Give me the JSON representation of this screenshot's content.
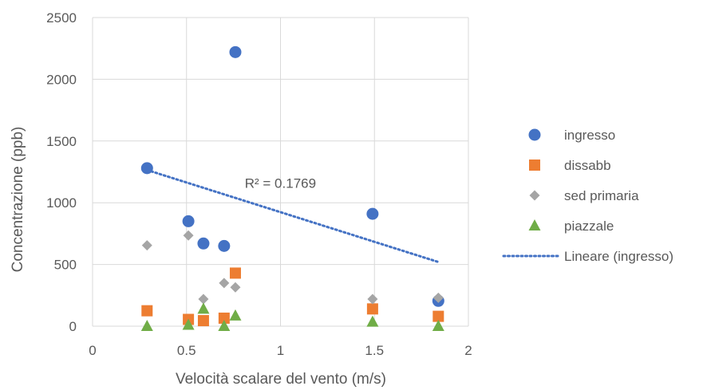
{
  "chart_data": {
    "type": "scatter",
    "title": "",
    "xlabel": "Velocità scalare del vento (m/s)",
    "ylabel": "Concentrazione (ppb)",
    "xlim": [
      0,
      2
    ],
    "ylim": [
      0,
      2500
    ],
    "xticks": [
      0,
      0.5,
      1,
      1.5,
      2
    ],
    "xtick_labels": [
      "0",
      "0.5",
      "1",
      "1.5",
      "2"
    ],
    "yticks": [
      0,
      500,
      1000,
      1500,
      2000,
      2500
    ],
    "ytick_labels": [
      "0",
      "500",
      "1000",
      "1500",
      "2000",
      "2500"
    ],
    "grid": true,
    "legend_position": "right",
    "series": [
      {
        "name": "ingresso",
        "marker": "circle",
        "color": "#4472C4",
        "points": [
          [
            0.29,
            1280
          ],
          [
            0.51,
            850
          ],
          [
            0.59,
            670
          ],
          [
            0.7,
            650
          ],
          [
            0.76,
            2220
          ],
          [
            1.49,
            910
          ],
          [
            1.84,
            205
          ]
        ]
      },
      {
        "name": "dissabb",
        "marker": "square",
        "color": "#ED7D31",
        "points": [
          [
            0.29,
            125
          ],
          [
            0.51,
            55
          ],
          [
            0.59,
            45
          ],
          [
            0.7,
            65
          ],
          [
            0.76,
            430
          ],
          [
            1.49,
            140
          ],
          [
            1.84,
            80
          ]
        ]
      },
      {
        "name": "sed primaria",
        "marker": "diamond",
        "color": "#A5A5A5",
        "points": [
          [
            0.29,
            655
          ],
          [
            0.51,
            735
          ],
          [
            0.59,
            220
          ],
          [
            0.7,
            350
          ],
          [
            0.76,
            315
          ],
          [
            1.49,
            220
          ],
          [
            1.84,
            230
          ]
        ]
      },
      {
        "name": "piazzale",
        "marker": "triangle",
        "color": "#70AD47",
        "points": [
          [
            0.29,
            0
          ],
          [
            0.51,
            10
          ],
          [
            0.59,
            140
          ],
          [
            0.7,
            0
          ],
          [
            0.76,
            85
          ],
          [
            1.49,
            35
          ],
          [
            1.84,
            0
          ]
        ]
      }
    ],
    "trendline": {
      "name": "Lineare (ingresso)",
      "series": "ingresso",
      "color": "#4472C4",
      "style": "dotted",
      "x_start": 0.29,
      "y_start": 1265,
      "x_end": 1.84,
      "y_end": 520,
      "r2_label": "R² = 0.1769",
      "r2_label_x": 0.81,
      "r2_label_y": 1160
    }
  }
}
